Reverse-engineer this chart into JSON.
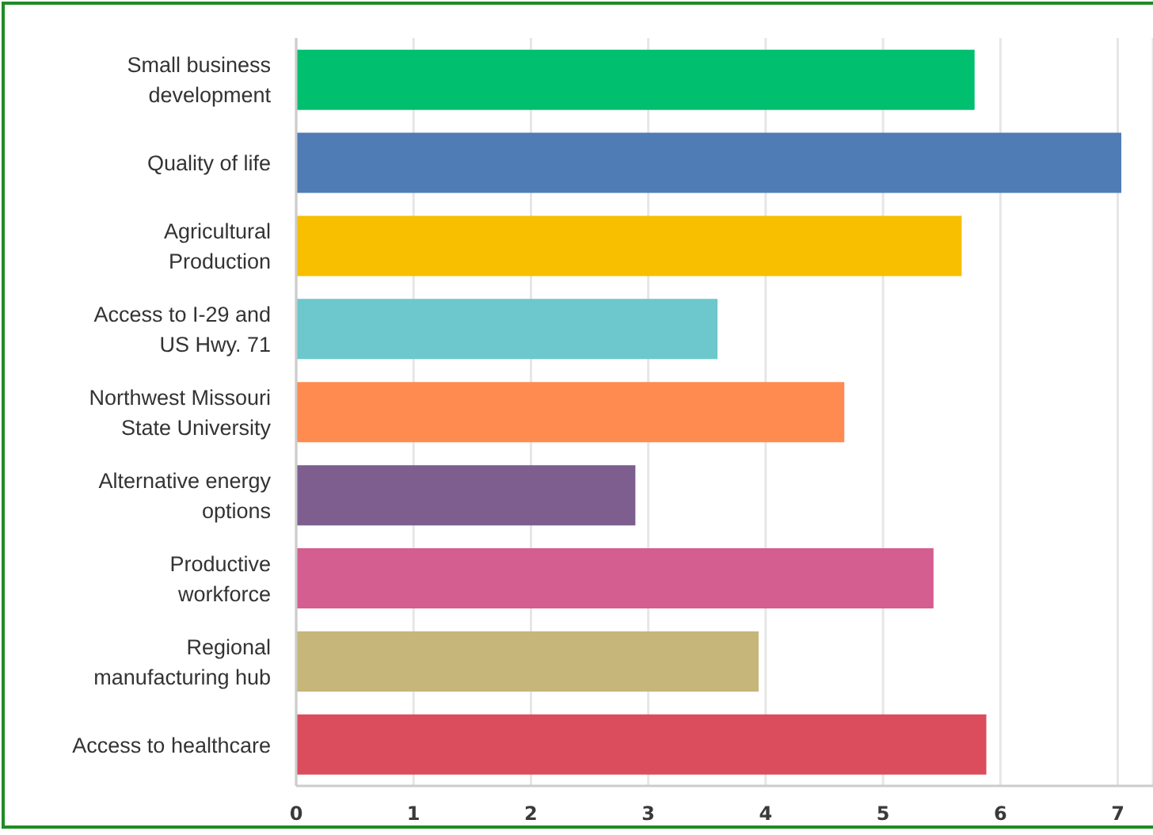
{
  "chart_data": {
    "type": "bar",
    "orientation": "horizontal",
    "categories": [
      "Small business\ndevelopment",
      "Quality of life",
      "Agricultural\nProduction",
      "Access to I-29 and\nUS Hwy. 71",
      "Northwest Missouri\nState University",
      "Alternative energy\noptions",
      "Productive\nworkforce",
      "Regional\nmanufacturing hub",
      "Access to healthcare"
    ],
    "values": [
      5.78,
      7.03,
      5.67,
      3.59,
      4.67,
      2.89,
      5.43,
      3.94,
      5.88
    ],
    "colors": [
      "#00bf6f",
      "#4f7cb5",
      "#f8be00",
      "#6cc8cc",
      "#ff8b50",
      "#7d5e8f",
      "#d45e8f",
      "#c7b67a",
      "#db4d5c"
    ],
    "xlim": [
      0,
      7.3
    ],
    "xticks": [
      0,
      1,
      2,
      3,
      4,
      5,
      6,
      7
    ],
    "grid": "x"
  }
}
